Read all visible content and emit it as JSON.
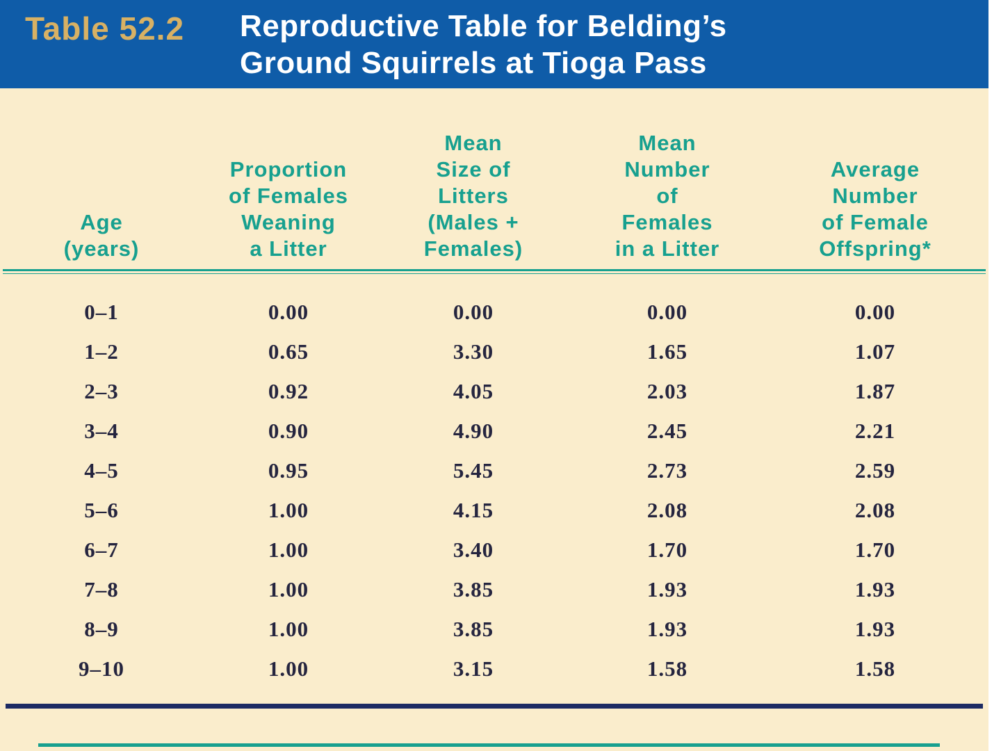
{
  "header": {
    "label": "Table 52.2",
    "title": "Reproductive Table for Belding’s\nGround Squirrels at Tioga Pass"
  },
  "columns": [
    "Age\n(years)",
    "Proportion\nof Females\nWeaning\na Litter",
    "Mean\nSize of\nLitters\n(Males +\nFemales)",
    "Mean\nNumber\nof\nFemales\nin a Litter",
    "Average\nNumber\nof Female\nOffspring*"
  ],
  "chart_data": {
    "type": "table",
    "title": "Table 52.2 Reproductive Table for Belding’s Ground Squirrels at Tioga Pass",
    "columns": [
      "Age (years)",
      "Proportion of Females Weaning a Litter",
      "Mean Size of Litters (Males + Females)",
      "Mean Number of Females in a Litter",
      "Average Number of Female Offspring*"
    ],
    "rows": [
      [
        "0–1",
        "0.00",
        "0.00",
        "0.00",
        "0.00"
      ],
      [
        "1–2",
        "0.65",
        "3.30",
        "1.65",
        "1.07"
      ],
      [
        "2–3",
        "0.92",
        "4.05",
        "2.03",
        "1.87"
      ],
      [
        "3–4",
        "0.90",
        "4.90",
        "2.45",
        "2.21"
      ],
      [
        "4–5",
        "0.95",
        "5.45",
        "2.73",
        "2.59"
      ],
      [
        "5–6",
        "1.00",
        "4.15",
        "2.08",
        "2.08"
      ],
      [
        "6–7",
        "1.00",
        "3.40",
        "1.70",
        "1.70"
      ],
      [
        "7–8",
        "1.00",
        "3.85",
        "1.93",
        "1.93"
      ],
      [
        "8–9",
        "1.00",
        "3.85",
        "1.93",
        "1.93"
      ],
      [
        "9–10",
        "1.00",
        "3.15",
        "1.58",
        "1.58"
      ]
    ]
  },
  "colors": {
    "header_bg": "#0F5CA8",
    "label_gold": "#D8B164",
    "title_white": "#FFFFFF",
    "body_bg": "#FAEDCC",
    "heading_teal": "#17A08F",
    "data_navy": "#25253F",
    "rule_navy": "#1C2B63"
  }
}
